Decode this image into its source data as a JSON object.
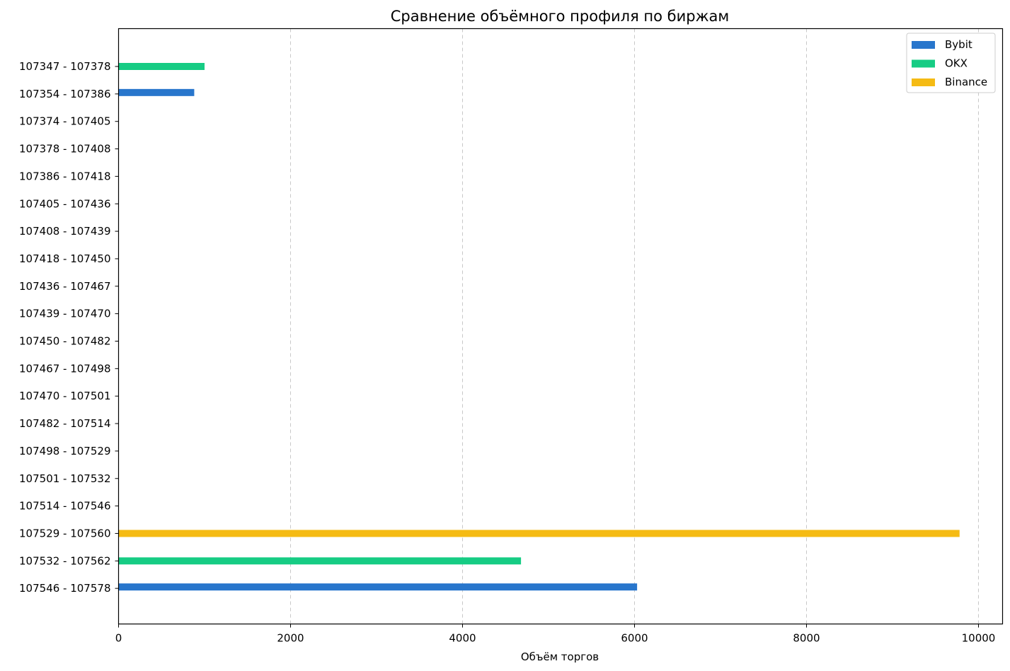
{
  "chart_data": {
    "type": "bar",
    "orientation": "horizontal",
    "title": "Сравнение объёмного профиля по биржам",
    "xlabel": "Объём торгов",
    "ylabel": "",
    "xlim": [
      0,
      10280
    ],
    "x_ticks": [
      0,
      2000,
      4000,
      6000,
      8000,
      10000
    ],
    "x_tick_labels": [
      "0",
      "2000",
      "4000",
      "6000",
      "8000",
      "10000"
    ],
    "grid": "x-axis dashed",
    "legend_position": "top-right",
    "categories": [
      "107347 - 107378",
      "107354 - 107386",
      "107374 - 107405",
      "107378 - 107408",
      "107386 - 107418",
      "107405 - 107436",
      "107408 - 107439",
      "107418 - 107450",
      "107436 - 107467",
      "107439 - 107470",
      "107450 - 107482",
      "107467 - 107498",
      "107470 - 107501",
      "107482 - 107514",
      "107498 - 107529",
      "107501 - 107532",
      "107514 - 107546",
      "107529 - 107560",
      "107532 - 107562",
      "107546 - 107578"
    ],
    "series": [
      {
        "name": "Bybit",
        "color": "#2876cc",
        "values": [
          0,
          880,
          0,
          0,
          0,
          0,
          0,
          0,
          0,
          0,
          0,
          0,
          0,
          0,
          0,
          0,
          0,
          0,
          0,
          6030
        ]
      },
      {
        "name": "OKX",
        "color": "#16cc84",
        "values": [
          1000,
          0,
          0,
          0,
          0,
          0,
          0,
          0,
          0,
          0,
          0,
          0,
          0,
          0,
          0,
          0,
          0,
          0,
          4680,
          0
        ]
      },
      {
        "name": "Binance",
        "color": "#f5bb14",
        "values": [
          0,
          0,
          0,
          0,
          0,
          0,
          0,
          0,
          0,
          0,
          0,
          0,
          0,
          0,
          0,
          0,
          0,
          9780,
          0,
          0
        ]
      }
    ]
  }
}
